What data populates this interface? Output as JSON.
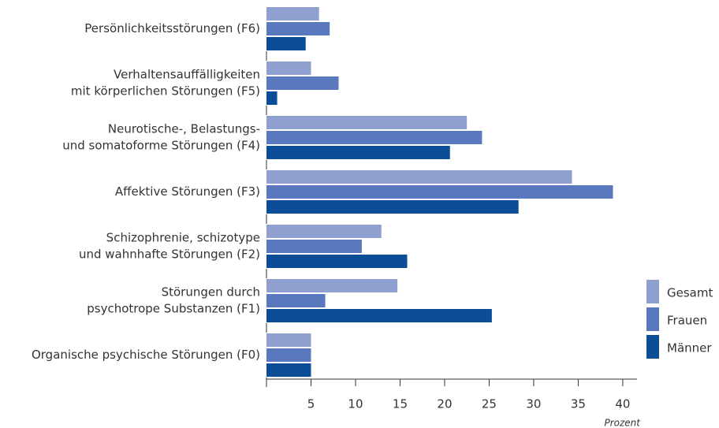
{
  "chart_data": {
    "type": "bar",
    "orientation": "horizontal",
    "categories": [
      [
        "Persönlichkeitsstörungen (F6)"
      ],
      [
        "Verhaltensauffälligkeiten",
        "mit körperlichen Störungen (F5)"
      ],
      [
        "Neurotische-, Belastungs-",
        "und somatoforme Störungen (F4)"
      ],
      [
        "Affektive Störungen (F3)"
      ],
      [
        "Schizophrenie, schizotype",
        "und wahnhafte Störungen (F2)"
      ],
      [
        "Störungen durch",
        "psychotrope Substanzen (F1)"
      ],
      [
        "Organische psychische Störungen (F0)"
      ]
    ],
    "series": [
      {
        "name": "Gesamt",
        "color": "#8e9fd0",
        "values": [
          5.9,
          5.0,
          22.5,
          34.3,
          12.9,
          14.7,
          5.0
        ]
      },
      {
        "name": "Frauen",
        "color": "#5a78bd",
        "values": [
          7.1,
          8.1,
          24.2,
          38.9,
          10.7,
          6.6,
          5.0
        ]
      },
      {
        "name": "Männer",
        "color": "#0b4d96",
        "values": [
          4.4,
          1.2,
          20.6,
          28.3,
          15.8,
          25.3,
          5.0
        ]
      }
    ],
    "xlim": [
      0,
      41.6
    ],
    "xticks": [
      5,
      10,
      15,
      20,
      25,
      30,
      35,
      40
    ],
    "xlabel": "Prozent",
    "legend": "right"
  }
}
